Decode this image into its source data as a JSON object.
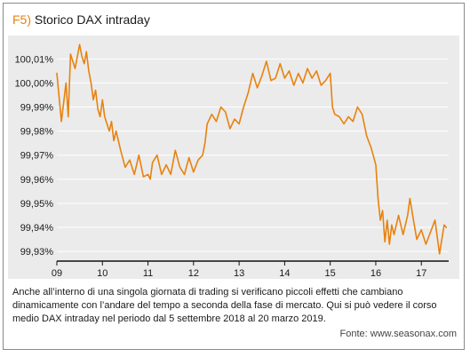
{
  "figure": {
    "label": "F5)",
    "title": "Storico DAX intraday",
    "caption": "Anche all’interno di una singola giornata di trading si verificano piccoli effetti che cambiano dinamicamente con l’andare del tempo a seconda della fase di mercato. Qui si può vedere il corso medio DAX intraday nel periodo dal 5 settembre 2018 al 20 marzo 2019.",
    "source": "Fonte: www.seasonax.com"
  },
  "colors": {
    "line": "#e8820e",
    "label": "#e8820e",
    "panel": "#ebebeb",
    "grid": "#ffffff"
  },
  "chart_data": {
    "type": "line",
    "title": "Storico DAX intraday",
    "xlabel": "",
    "ylabel": "",
    "x_ticks": [
      "09",
      "10",
      "11",
      "12",
      "13",
      "14",
      "15",
      "16",
      "17"
    ],
    "y_ticks": [
      "100,01%",
      "100,00%",
      "99,99%",
      "99,98%",
      "99,97%",
      "99,96%",
      "99,95%",
      "99,94%",
      "99,93%"
    ],
    "xlim": [
      9,
      17.6
    ],
    "ylim": [
      99.926,
      100.0175
    ],
    "grid": "horizontal",
    "legend": "none",
    "series": [
      {
        "x": [
          9.0,
          9.1,
          9.2,
          9.25,
          9.3,
          9.4,
          9.5,
          9.55,
          9.6,
          9.65,
          9.7,
          9.75,
          9.8,
          9.85,
          9.9,
          9.95,
          10.0,
          10.05,
          10.1,
          10.15,
          10.2,
          10.25,
          10.3,
          10.4,
          10.5,
          10.6,
          10.7,
          10.8,
          10.9,
          11.0,
          11.05,
          11.1,
          11.2,
          11.3,
          11.4,
          11.5,
          11.6,
          11.7,
          11.8,
          11.9,
          12.0,
          12.1,
          12.2,
          12.25,
          12.3,
          12.4,
          12.5,
          12.6,
          12.7,
          12.8,
          12.9,
          13.0,
          13.1,
          13.2,
          13.3,
          13.4,
          13.5,
          13.6,
          13.7,
          13.8,
          13.9,
          14.0,
          14.1,
          14.2,
          14.3,
          14.4,
          14.5,
          14.6,
          14.7,
          14.8,
          14.9,
          15.0,
          15.05,
          15.1,
          15.2,
          15.3,
          15.4,
          15.5,
          15.6,
          15.7,
          15.8,
          15.9,
          16.0,
          16.05,
          16.1,
          16.15,
          16.2,
          16.25,
          16.3,
          16.35,
          16.4,
          16.5,
          16.6,
          16.7,
          16.75,
          16.8,
          16.9,
          17.0,
          17.1,
          17.2,
          17.3,
          17.4,
          17.5,
          17.55
        ],
        "y": [
          100.004,
          99.984,
          100.0,
          99.986,
          100.012,
          100.006,
          100.016,
          100.011,
          100.008,
          100.013,
          100.005,
          100.0,
          99.993,
          99.997,
          99.989,
          99.986,
          99.993,
          99.986,
          99.983,
          99.98,
          99.984,
          99.976,
          99.98,
          99.972,
          99.965,
          99.968,
          99.962,
          99.97,
          99.961,
          99.962,
          99.96,
          99.967,
          99.97,
          99.962,
          99.966,
          99.962,
          99.972,
          99.965,
          99.962,
          99.969,
          99.963,
          99.968,
          99.97,
          99.975,
          99.983,
          99.987,
          99.984,
          99.99,
          99.988,
          99.981,
          99.985,
          99.983,
          99.99,
          99.996,
          100.004,
          99.998,
          100.003,
          100.009,
          100.001,
          100.002,
          100.008,
          100.002,
          100.005,
          99.999,
          100.004,
          100.0,
          100.006,
          100.002,
          100.005,
          99.999,
          100.001,
          100.004,
          99.99,
          99.987,
          99.986,
          99.983,
          99.986,
          99.984,
          99.99,
          99.987,
          99.978,
          99.973,
          99.966,
          99.952,
          99.943,
          99.947,
          99.934,
          99.943,
          99.933,
          99.941,
          99.937,
          99.945,
          99.937,
          99.945,
          99.952,
          99.946,
          99.935,
          99.939,
          99.933,
          99.938,
          99.943,
          99.929,
          99.941,
          99.94
        ]
      }
    ]
  }
}
